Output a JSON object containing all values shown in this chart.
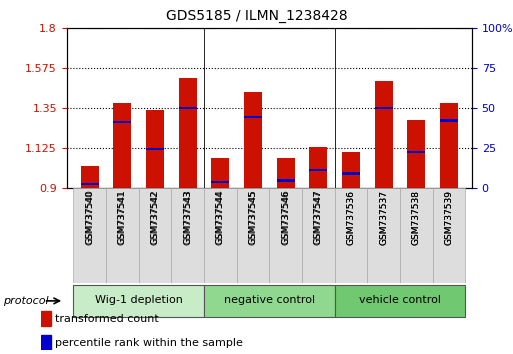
{
  "title": "GDS5185 / ILMN_1238428",
  "samples": [
    "GSM737540",
    "GSM737541",
    "GSM737542",
    "GSM737543",
    "GSM737544",
    "GSM737545",
    "GSM737546",
    "GSM737547",
    "GSM737536",
    "GSM737537",
    "GSM737538",
    "GSM737539"
  ],
  "red_values": [
    1.02,
    1.38,
    1.34,
    1.52,
    1.07,
    1.44,
    1.07,
    1.13,
    1.1,
    1.5,
    1.28,
    1.38
  ],
  "blue_values": [
    0.92,
    1.27,
    1.12,
    1.35,
    0.93,
    1.3,
    0.94,
    1.0,
    0.98,
    1.35,
    1.1,
    1.28
  ],
  "red_color": "#cc1100",
  "blue_color": "#0000cc",
  "ylim_left": [
    0.9,
    1.8
  ],
  "ylim_right": [
    0,
    100
  ],
  "yticks_left": [
    0.9,
    1.125,
    1.35,
    1.575,
    1.8
  ],
  "ytick_labels_left": [
    "0.9",
    "1.125",
    "1.35",
    "1.575",
    "1.8"
  ],
  "yticks_right": [
    0,
    25,
    50,
    75,
    100
  ],
  "ytick_labels_right": [
    "0",
    "25",
    "50",
    "75",
    "100%"
  ],
  "groups": [
    {
      "label": "Wig-1 depletion",
      "indices": [
        0,
        1,
        2,
        3
      ],
      "color": "#c8ecc8"
    },
    {
      "label": "negative control",
      "indices": [
        4,
        5,
        6,
        7
      ],
      "color": "#90d890"
    },
    {
      "label": "vehicle control",
      "indices": [
        8,
        9,
        10,
        11
      ],
      "color": "#70c870"
    }
  ],
  "protocol_label": "protocol",
  "legend": [
    {
      "color": "#cc1100",
      "label": "transformed count"
    },
    {
      "color": "#0000cc",
      "label": "percentile rank within the sample"
    }
  ],
  "bar_width": 0.55,
  "background_color": "#ffffff",
  "plot_bg_color": "#ffffff",
  "axis_label_color_left": "#cc1100",
  "axis_label_color_right": "#0000cc",
  "base": 0.9,
  "blue_bar_height": 0.013,
  "fig_width": 5.13,
  "fig_height": 3.54,
  "dpi": 100
}
